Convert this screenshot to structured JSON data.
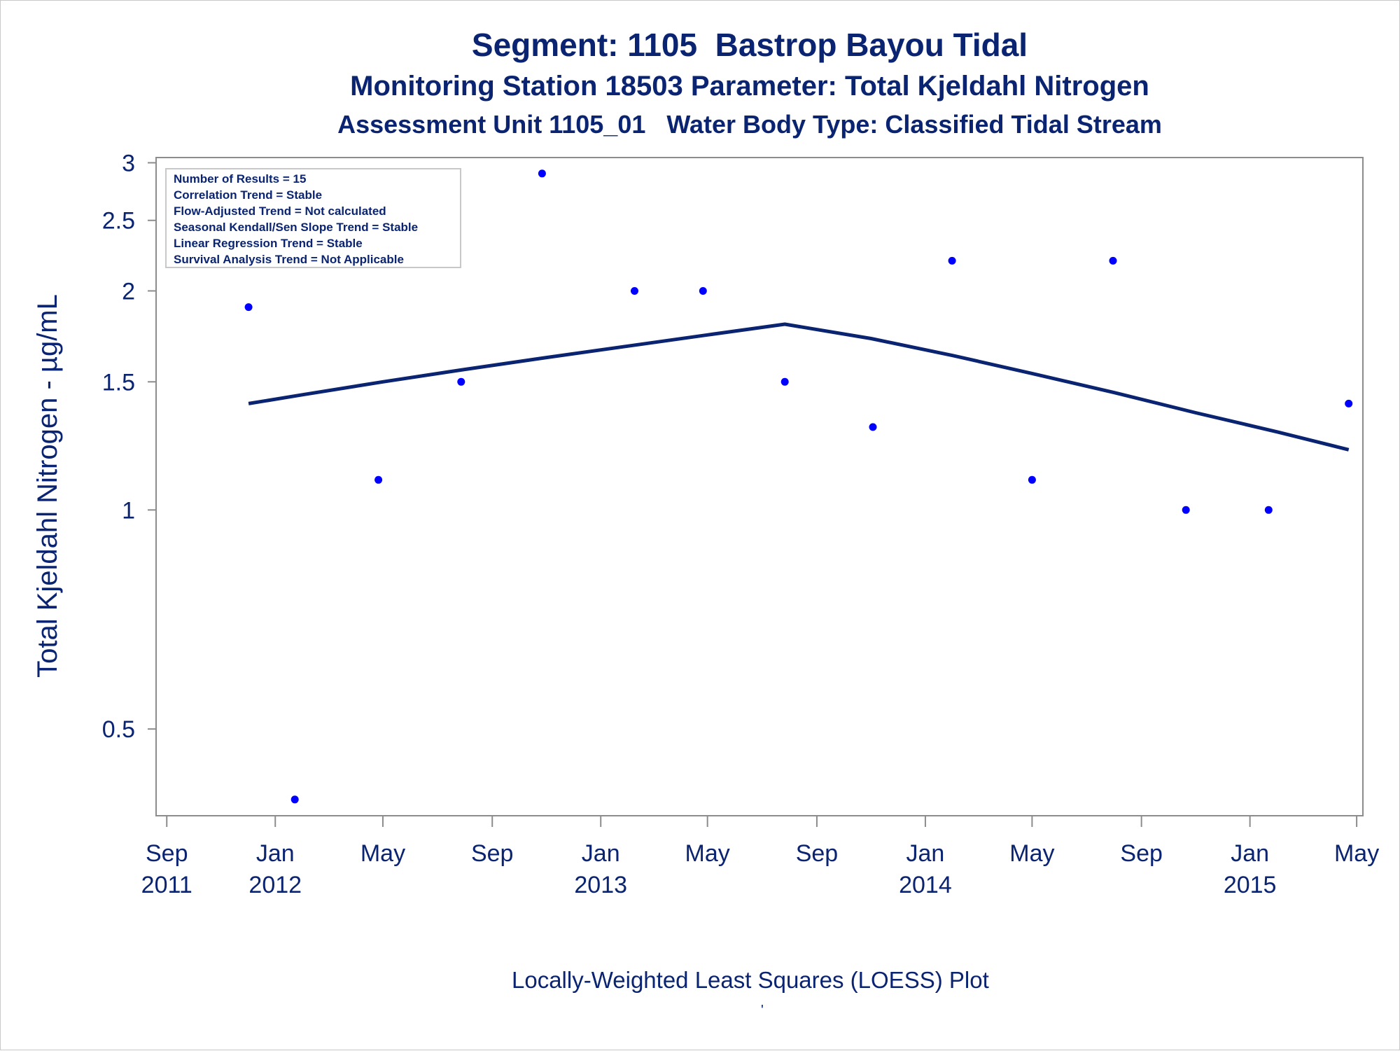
{
  "title": "Segment: 1105  Bastrop Bayou Tidal",
  "subtitle1": "Monitoring Station 18503 Parameter: Total Kjeldahl Nitrogen",
  "subtitle2": "Assessment Unit 1105_01   Water Body Type: Classified Tidal Stream",
  "footer": "Locally-Weighted Least Squares (LOESS) Plot",
  "footer_mark": "'",
  "colors": {
    "text": "#0a2472",
    "points": "#0000ff",
    "line": "#0a2472",
    "frame": "#8c8c8c"
  },
  "chart_data": {
    "type": "scatter",
    "title": "Segment: 1105  Bastrop Bayou Tidal",
    "ylabel": "Total Kjeldahl Nitrogen -  µg/mL",
    "xlabel": "",
    "y_scale": "log",
    "ylim": [
      0.38,
      3.05
    ],
    "xlim": [
      "2011-08-20",
      "2015-05-08"
    ],
    "grid": false,
    "y_ticks": [
      0.5,
      1,
      1.5,
      2,
      2.5,
      3
    ],
    "y_tick_labels": [
      "0.5",
      "1",
      "1.5",
      "2",
      "2.5",
      "3"
    ],
    "x_ticks": [
      {
        "date": "2011-09-01",
        "month": "Sep",
        "year": "2011"
      },
      {
        "date": "2012-01-01",
        "month": "Jan",
        "year": "2012"
      },
      {
        "date": "2012-05-01",
        "month": "May",
        "year": ""
      },
      {
        "date": "2012-09-01",
        "month": "Sep",
        "year": ""
      },
      {
        "date": "2013-01-01",
        "month": "Jan",
        "year": "2013"
      },
      {
        "date": "2013-05-01",
        "month": "May",
        "year": ""
      },
      {
        "date": "2013-09-01",
        "month": "Sep",
        "year": ""
      },
      {
        "date": "2014-01-01",
        "month": "Jan",
        "year": "2014"
      },
      {
        "date": "2014-05-01",
        "month": "May",
        "year": ""
      },
      {
        "date": "2014-09-01",
        "month": "Sep",
        "year": ""
      },
      {
        "date": "2015-01-01",
        "month": "Jan",
        "year": "2015"
      },
      {
        "date": "2015-05-01",
        "month": "May",
        "year": ""
      }
    ],
    "series": [
      {
        "type": "scatter",
        "points": [
          {
            "x": "2011-12-02",
            "y": 1.9
          },
          {
            "x": "2012-01-23",
            "y": 0.4
          },
          {
            "x": "2012-04-26",
            "y": 1.1
          },
          {
            "x": "2012-07-28",
            "y": 1.5
          },
          {
            "x": "2012-10-27",
            "y": 2.9
          },
          {
            "x": "2013-02-08",
            "y": 2.0
          },
          {
            "x": "2013-04-26",
            "y": 2.0
          },
          {
            "x": "2013-07-27",
            "y": 1.5
          },
          {
            "x": "2013-11-03",
            "y": 1.3
          },
          {
            "x": "2014-01-31",
            "y": 2.2
          },
          {
            "x": "2014-05-01",
            "y": 1.1
          },
          {
            "x": "2014-07-31",
            "y": 2.2
          },
          {
            "x": "2014-10-21",
            "y": 1.0
          },
          {
            "x": "2015-01-22",
            "y": 1.0
          },
          {
            "x": "2015-04-22",
            "y": 1.4
          }
        ]
      },
      {
        "type": "line",
        "points": [
          {
            "x": "2011-12-02",
            "y": 1.4
          },
          {
            "x": "2012-02-01",
            "y": 1.44
          },
          {
            "x": "2012-05-01",
            "y": 1.5
          },
          {
            "x": "2012-08-01",
            "y": 1.56
          },
          {
            "x": "2012-11-01",
            "y": 1.62
          },
          {
            "x": "2013-02-01",
            "y": 1.68
          },
          {
            "x": "2013-05-01",
            "y": 1.74
          },
          {
            "x": "2013-07-27",
            "y": 1.8
          },
          {
            "x": "2013-11-01",
            "y": 1.72
          },
          {
            "x": "2014-02-01",
            "y": 1.63
          },
          {
            "x": "2014-05-01",
            "y": 1.54
          },
          {
            "x": "2014-08-01",
            "y": 1.45
          },
          {
            "x": "2014-11-01",
            "y": 1.36
          },
          {
            "x": "2015-02-01",
            "y": 1.28
          },
          {
            "x": "2015-04-22",
            "y": 1.21
          }
        ]
      }
    ]
  },
  "stats_box": {
    "lines": [
      "Number of Results = 15",
      "Correlation Trend = Stable",
      "Flow-Adjusted Trend = Not calculated",
      "Seasonal Kendall/Sen Slope Trend = Stable",
      "Linear Regression Trend = Stable",
      "Survival Analysis Trend = Not Applicable"
    ]
  }
}
